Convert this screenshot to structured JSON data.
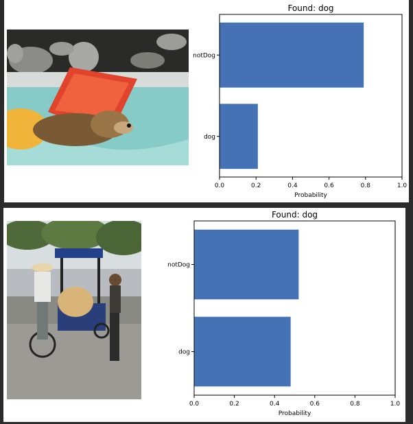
{
  "chart_data": [
    {
      "type": "bar",
      "orientation": "horizontal",
      "title": "Found: dog",
      "xlabel": "Probability",
      "ylabel": "",
      "categories": [
        "notDog",
        "dog"
      ],
      "values": [
        0.79,
        0.21
      ],
      "xlim": [
        0,
        1
      ],
      "xticks": [
        "0.0",
        "0.2",
        "0.4",
        "0.6",
        "0.8",
        "1.0"
      ],
      "bar_color": "#4472b4",
      "grid": false
    },
    {
      "type": "bar",
      "orientation": "horizontal",
      "title": "Found: dog",
      "xlabel": "Probability",
      "ylabel": "",
      "categories": [
        "notDog",
        "dog"
      ],
      "values": [
        0.52,
        0.48
      ],
      "xlim": [
        0,
        1
      ],
      "xticks": [
        "0.0",
        "0.2",
        "0.4",
        "0.6",
        "0.8",
        "1.0"
      ],
      "bar_color": "#4472b4",
      "grid": false
    }
  ],
  "photos": [
    {
      "subject": "dog swimming in pool with inflatable float"
    },
    {
      "subject": "dog riding in pedicab with two people"
    }
  ]
}
